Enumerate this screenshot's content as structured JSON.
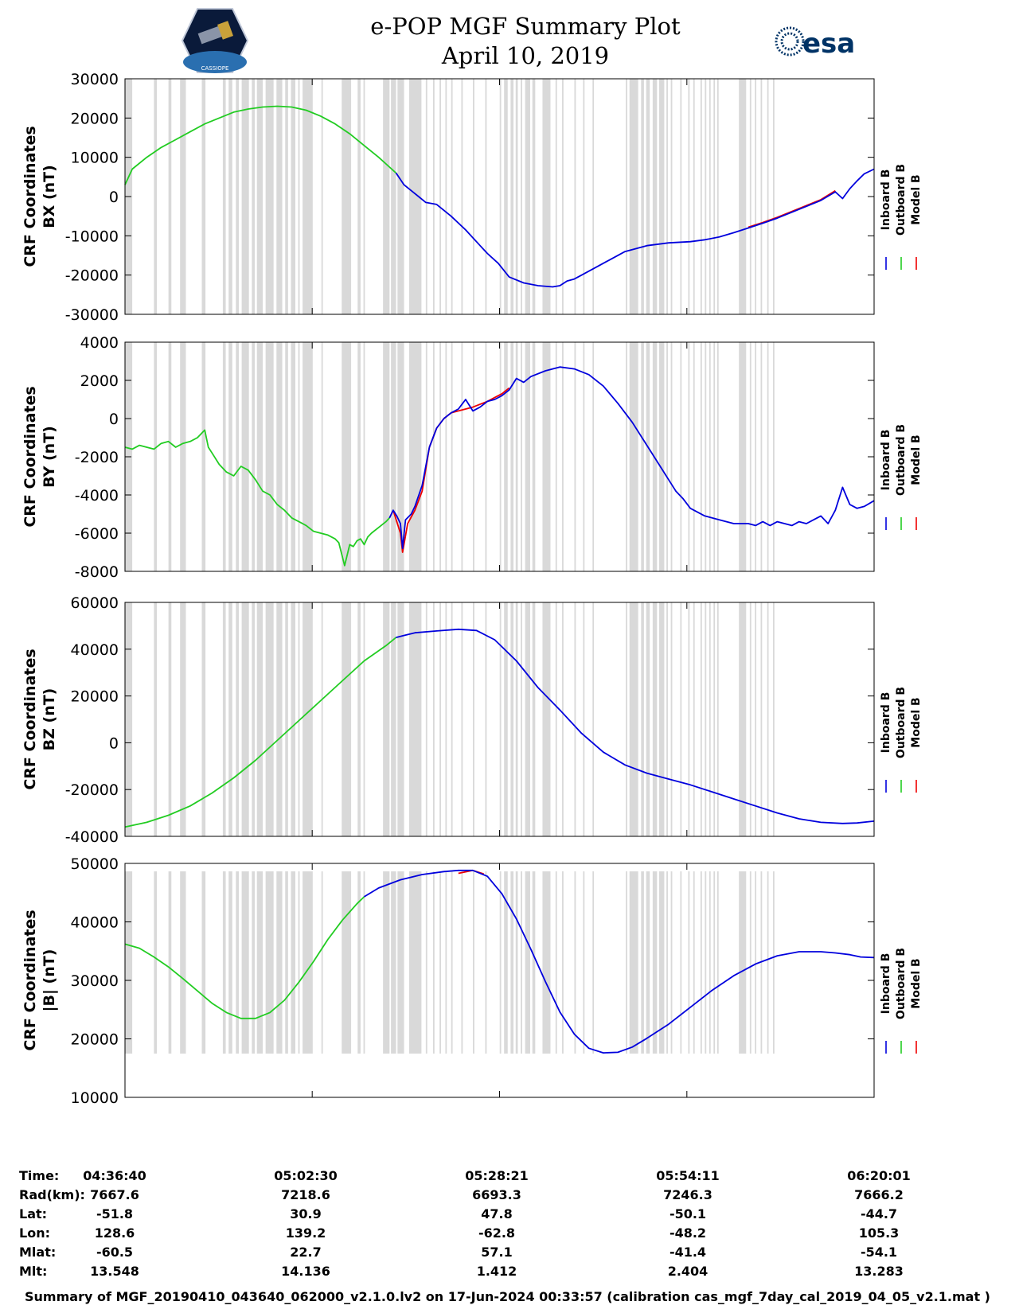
{
  "title": {
    "line1": "e-POP MGF Summary Plot",
    "line2": "April 10, 2019"
  },
  "logos": {
    "left": "CASSIOPE",
    "right": "esa"
  },
  "colors": {
    "inboard": "#0000dd",
    "outboard": "#22cc22",
    "model": "#ee0000",
    "gap": "#d9d9d9"
  },
  "legend": [
    "Inboard B",
    "Outboard B",
    "Model B"
  ],
  "gap_intervals_min": [
    [
      0,
      1
    ],
    [
      4,
      4.4
    ],
    [
      6,
      6.4
    ],
    [
      7.6,
      8.4
    ],
    [
      10.6,
      11.1
    ],
    [
      13.5,
      13.9
    ],
    [
      14.3,
      14.8
    ],
    [
      15.3,
      15.7
    ],
    [
      16.1,
      17.1
    ],
    [
      17.5,
      17.9
    ],
    [
      18.2,
      19
    ],
    [
      19.4,
      20.5
    ],
    [
      20.9,
      21.7
    ],
    [
      22.1,
      22.5
    ],
    [
      22.9,
      23.5
    ],
    [
      23.9,
      24.1
    ],
    [
      24.5,
      25.9
    ],
    [
      27.1,
      27.3
    ],
    [
      29.9,
      31.2
    ],
    [
      32.1,
      32.5
    ],
    [
      32.9,
      33.1
    ],
    [
      35.6,
      36.5
    ],
    [
      36.7,
      37.4
    ],
    [
      37.6,
      38.5
    ],
    [
      39.2,
      40.9
    ],
    [
      41.5,
      41.7
    ],
    [
      42.5,
      42.7
    ],
    [
      43.4,
      43.6
    ],
    [
      44.2,
      44.4
    ],
    [
      45,
      45.2
    ],
    [
      46.4,
      46.6
    ],
    [
      48,
      48.2
    ],
    [
      49.7,
      49.9
    ],
    [
      51.7,
      51.9
    ],
    [
      52.3,
      52.8
    ],
    [
      53.2,
      53.6
    ],
    [
      53.9,
      54.2
    ],
    [
      54.6,
      54.8
    ],
    [
      55.2,
      55.9
    ],
    [
      56.2,
      56.6
    ],
    [
      57.6,
      58.7
    ],
    [
      59.4,
      59.6
    ],
    [
      60.3,
      60.5
    ],
    [
      62,
      62.2
    ],
    [
      63.2,
      63.4
    ],
    [
      64.5,
      64.7
    ],
    [
      69.1,
      69.3
    ],
    [
      69.6,
      70.8
    ],
    [
      71.2,
      71.6
    ],
    [
      71.9,
      72.4
    ],
    [
      72.8,
      73.4
    ],
    [
      73.7,
      74.4
    ],
    [
      74.7,
      74.9
    ],
    [
      75.3,
      75.5
    ],
    [
      76.6,
      76.8
    ],
    [
      77.7,
      77.9
    ],
    [
      78.4,
      78.6
    ],
    [
      79.4,
      79.6
    ],
    [
      80,
      80.2
    ],
    [
      80.6,
      80.8
    ],
    [
      81.2,
      81.4
    ],
    [
      81.7,
      81.9
    ],
    [
      84.7,
      85.7
    ],
    [
      86.2,
      86.4
    ],
    [
      86.9,
      87.1
    ],
    [
      87.7,
      87.9
    ],
    [
      88.6,
      88.8
    ],
    [
      89.4,
      89.6
    ]
  ],
  "x_axis": {
    "range_min": [
      0,
      103.35
    ],
    "ticks_min": [
      0,
      25.83,
      51.68,
      77.52,
      103.35
    ],
    "tick_labels": [
      "04:36:40",
      "05:02:30",
      "05:28:21",
      "05:54:11",
      "06:20:01"
    ]
  },
  "chart_data": [
    {
      "type": "line",
      "ylabel_line1": "CRF Coordinates",
      "ylabel_line2": "BX (nT)",
      "ylim": [
        -30000,
        30000
      ],
      "yticks": [
        -30000,
        -20000,
        -10000,
        0,
        10000,
        20000,
        30000
      ],
      "ytick_labels": [
        "-30000",
        "-20000",
        "-10000",
        "0",
        "10000",
        "20000",
        "30000"
      ],
      "series": [
        {
          "name": "Outboard B",
          "x": [
            0,
            1,
            3,
            5,
            7,
            9,
            11,
            13,
            15,
            17,
            19,
            21,
            23,
            25,
            27,
            29,
            31,
            33,
            35,
            36.5,
            37.4
          ],
          "y": [
            3000,
            7000,
            10000,
            12500,
            14500,
            16500,
            18500,
            20000,
            21500,
            22300,
            22800,
            23000,
            22800,
            22000,
            20500,
            18500,
            16000,
            13000,
            10000,
            7500,
            6000
          ]
        },
        {
          "name": "Inboard B",
          "x": [
            37.4,
            38.5,
            39.5,
            40.5,
            41.5,
            43,
            45,
            47,
            49,
            50,
            51.5,
            53,
            55,
            57,
            59,
            60,
            61,
            62,
            63,
            65,
            67,
            69,
            72,
            75,
            78,
            80,
            82,
            84,
            86,
            88,
            90,
            92,
            94,
            96,
            98,
            99,
            100,
            101,
            102,
            103.35
          ],
          "y": [
            6000,
            3000,
            1500,
            0,
            -1500,
            -2000,
            -5000,
            -8500,
            -12500,
            -14500,
            -17000,
            -20500,
            -22000,
            -22700,
            -23000,
            -22700,
            -21500,
            -21000,
            -20000,
            -18000,
            -16000,
            -14000,
            -12500,
            -11800,
            -11500,
            -11000,
            -10300,
            -9200,
            -8000,
            -6800,
            -5500,
            -4000,
            -2500,
            -1000,
            1200,
            -500,
            2000,
            4000,
            5800,
            7000
          ]
        },
        {
          "name": "Model B",
          "x": [
            86,
            88,
            90,
            92,
            94,
            96,
            98
          ],
          "y": [
            -7800,
            -6600,
            -5300,
            -3800,
            -2300,
            -800,
            1500
          ]
        }
      ]
    },
    {
      "type": "line",
      "ylabel_line1": "CRF Coordinates",
      "ylabel_line2": "BY (nT)",
      "ylim": [
        -8000,
        4000
      ],
      "yticks": [
        -8000,
        -6000,
        -4000,
        -2000,
        0,
        2000,
        4000
      ],
      "ytick_labels": [
        "-8000",
        "-6000",
        "-4000",
        "-2000",
        "0",
        "2000",
        "4000"
      ],
      "series": [
        {
          "name": "Outboard B",
          "x": [
            0,
            1,
            2,
            3,
            4,
            5,
            6,
            7,
            8,
            9,
            10,
            11,
            11.5,
            12,
            13,
            14,
            15,
            16,
            17,
            18,
            19,
            20,
            21,
            22,
            23,
            24,
            25,
            26,
            27,
            28,
            29,
            29.5,
            30.3,
            31,
            31.5,
            32,
            32.5,
            33,
            33.5,
            34,
            35,
            36,
            36.5
          ],
          "y": [
            -1500,
            -1600,
            -1400,
            -1500,
            -1600,
            -1300,
            -1200,
            -1500,
            -1300,
            -1200,
            -1000,
            -600,
            -1500,
            -1800,
            -2400,
            -2800,
            -3000,
            -2500,
            -2700,
            -3200,
            -3800,
            -4000,
            -4500,
            -4800,
            -5200,
            -5400,
            -5600,
            -5900,
            -6000,
            -6100,
            -6300,
            -6500,
            -7700,
            -6600,
            -6700,
            -6400,
            -6300,
            -6600,
            -6200,
            -6000,
            -5700,
            -5400,
            -5200
          ]
        },
        {
          "name": "Model B",
          "x": [
            37,
            38,
            38.3,
            39,
            40,
            41,
            42,
            43,
            44,
            45,
            47,
            48,
            50,
            51,
            52,
            53
          ],
          "y": [
            -4800,
            -6000,
            -7000,
            -5500,
            -4800,
            -3800,
            -1500,
            -500,
            0,
            300,
            500,
            600,
            900,
            1100,
            1300,
            1600
          ]
        },
        {
          "name": "Inboard B",
          "x": [
            36.5,
            37,
            37.5,
            38,
            38.3,
            38.7,
            39.5,
            40,
            41,
            42,
            43,
            44,
            45,
            46,
            47,
            48,
            49,
            50,
            51,
            52,
            53,
            54,
            55,
            56,
            58,
            60,
            62,
            64,
            66,
            68,
            70,
            72,
            74,
            75,
            76,
            77,
            78,
            80,
            82,
            84,
            86,
            87,
            88,
            89,
            90,
            91,
            92,
            93,
            94,
            95,
            96,
            97,
            98,
            99,
            100,
            101,
            102,
            103.35
          ],
          "y": [
            -5200,
            -4800,
            -5100,
            -5500,
            -6800,
            -5300,
            -5000,
            -4600,
            -3500,
            -1500,
            -500,
            0,
            300,
            500,
            1000,
            400,
            600,
            900,
            1000,
            1200,
            1500,
            2100,
            1900,
            2200,
            2500,
            2700,
            2600,
            2300,
            1700,
            800,
            -200,
            -1400,
            -2600,
            -3200,
            -3800,
            -4200,
            -4700,
            -5100,
            -5300,
            -5500,
            -5500,
            -5600,
            -5400,
            -5600,
            -5400,
            -5500,
            -5600,
            -5400,
            -5500,
            -5300,
            -5100,
            -5500,
            -4800,
            -3600,
            -4500,
            -4700,
            -4600,
            -4300
          ]
        }
      ]
    },
    {
      "type": "line",
      "ylabel_line1": "CRF Coordinates",
      "ylabel_line2": "BZ (nT)",
      "ylim": [
        -40000,
        60000
      ],
      "yticks": [
        -40000,
        -20000,
        0,
        20000,
        40000,
        60000
      ],
      "ytick_labels": [
        "-40000",
        "-20000",
        "0",
        "20000",
        "40000",
        "60000"
      ],
      "series": [
        {
          "name": "Outboard B",
          "x": [
            0,
            3,
            6,
            9,
            12,
            15,
            18,
            21,
            24,
            27,
            30,
            33,
            36,
            37.4
          ],
          "y": [
            -36000,
            -34000,
            -31000,
            -27000,
            -21500,
            -15000,
            -7500,
            1000,
            9500,
            18000,
            26500,
            35000,
            41500,
            45000
          ]
        },
        {
          "name": "Inboard B",
          "x": [
            37.4,
            40,
            43,
            46,
            48.5,
            51,
            54,
            57,
            60,
            63,
            66,
            69,
            72,
            75,
            78,
            81,
            84,
            87,
            90,
            93,
            96,
            99,
            101,
            103.35
          ],
          "y": [
            45000,
            47000,
            47800,
            48500,
            48000,
            44000,
            35000,
            23500,
            14000,
            4000,
            -4000,
            -9500,
            -13000,
            -15500,
            -18000,
            -21000,
            -24000,
            -27000,
            -30000,
            -32500,
            -34000,
            -34500,
            -34300,
            -33500
          ]
        },
        {
          "name": "Model B",
          "x": [],
          "y": []
        }
      ]
    },
    {
      "type": "line",
      "ylabel_line1": "CRF Coordinates",
      "ylabel_line2": "|B| (nT)",
      "ylim": [
        10000,
        50000
      ],
      "yticks": [
        10000,
        20000,
        30000,
        40000,
        50000
      ],
      "ytick_labels": [
        "10000",
        "20000",
        "30000",
        "40000",
        "50000"
      ],
      "series": [
        {
          "name": "Outboard B",
          "x": [
            0,
            2,
            4,
            6,
            8,
            10,
            12,
            14,
            16,
            18,
            20,
            22,
            24,
            26,
            28,
            30,
            32,
            33
          ],
          "y": [
            36200,
            35500,
            34000,
            32300,
            30300,
            28200,
            26100,
            24500,
            23500,
            23500,
            24500,
            26600,
            29700,
            33200,
            37000,
            40300,
            43100,
            44300
          ]
        },
        {
          "name": "Model B",
          "x": [
            46,
            48,
            49.5
          ],
          "y": [
            48300,
            48800,
            48200
          ]
        },
        {
          "name": "Inboard B",
          "x": [
            33,
            35,
            38,
            41,
            44,
            46,
            48,
            50,
            52,
            54,
            56,
            58,
            60,
            62,
            64,
            66,
            68,
            70,
            72,
            75,
            78,
            81,
            84,
            87,
            90,
            93,
            96,
            98,
            100,
            101.5,
            103.35
          ],
          "y": [
            44300,
            45800,
            47200,
            48100,
            48600,
            48800,
            48800,
            47800,
            44800,
            40500,
            35300,
            29800,
            24600,
            20800,
            18400,
            17600,
            17700,
            18600,
            20100,
            22500,
            25400,
            28300,
            30800,
            32800,
            34200,
            34900,
            34900,
            34700,
            34400,
            34000,
            33900
          ]
        }
      ]
    }
  ],
  "info": {
    "labels": [
      "Time:",
      "Rad(km):",
      "Lat:",
      "Lon:",
      "Mlat:",
      "Mlt:"
    ],
    "columns": [
      [
        "04:36:40",
        "7667.6",
        "-51.8",
        "128.6",
        "-60.5",
        "13.548"
      ],
      [
        "05:02:30",
        "7218.6",
        "30.9",
        "139.2",
        "22.7",
        "14.136"
      ],
      [
        "05:28:21",
        "6693.3",
        "47.8",
        "-62.8",
        "57.1",
        "1.412"
      ],
      [
        "05:54:11",
        "7246.3",
        "-50.1",
        "-48.2",
        "-41.4",
        "2.404"
      ],
      [
        "06:20:01",
        "7666.2",
        "-44.7",
        "105.3",
        "-54.1",
        "13.283"
      ]
    ]
  },
  "footer": "Summary of MGF_20190410_043640_062000_v2.1.0.lv2 on 17-Jun-2024 00:33:57 (calibration cas_mgf_7day_cal_2019_04_05_v2.1.mat )"
}
